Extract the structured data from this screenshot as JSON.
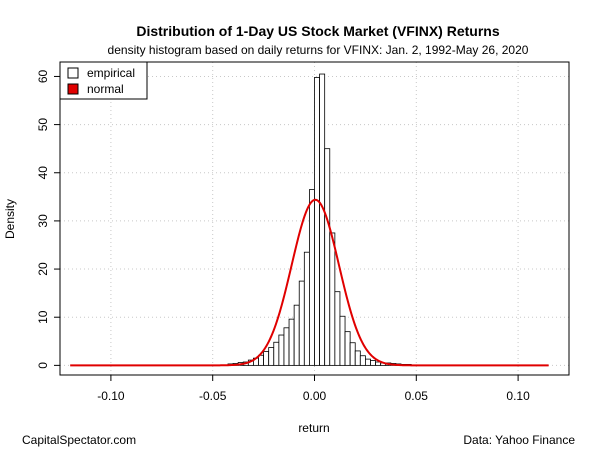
{
  "chart_data": {
    "type": "bar",
    "title": "Distribution of 1-Day US Stock Market (VFINX) Returns",
    "subtitle": "density histogram based on daily returns for VFINX: Jan. 2, 1992-May 26, 2020",
    "xlabel": "return",
    "ylabel": "Density",
    "xlim": [
      -0.125,
      0.125
    ],
    "ylim": [
      -2,
      63
    ],
    "xticks": [
      -0.1,
      -0.05,
      0.0,
      0.05,
      0.1
    ],
    "xtick_labels": [
      "-0.10",
      "-0.05",
      "0.00",
      "0.05",
      "0.10"
    ],
    "yticks": [
      0,
      10,
      20,
      30,
      40,
      50,
      60
    ],
    "ytick_labels": [
      "0",
      "10",
      "20",
      "30",
      "40",
      "50",
      "60"
    ],
    "grid": true,
    "legend_position": "top-left",
    "bin_width": 0.0025,
    "series": [
      {
        "name": "empirical",
        "style": "histogram",
        "color": "#000000",
        "fill": "#ffffff",
        "bin_start": [
          -0.0425,
          -0.04,
          -0.0375,
          -0.035,
          -0.0325,
          -0.03,
          -0.0275,
          -0.025,
          -0.0225,
          -0.02,
          -0.0175,
          -0.015,
          -0.0125,
          -0.01,
          -0.0075,
          -0.005,
          -0.0025,
          0.0,
          0.0025,
          0.005,
          0.0075,
          0.01,
          0.0125,
          0.015,
          0.0175,
          0.02,
          0.0225,
          0.025,
          0.0275,
          0.03,
          0.0325,
          0.035,
          0.0375,
          0.04,
          0.0425,
          0.045
        ],
        "values": [
          0.3,
          0.4,
          0.6,
          0.7,
          1.1,
          1.5,
          2.1,
          2.9,
          3.7,
          4.8,
          6.3,
          7.8,
          9.6,
          12.5,
          17.5,
          23.5,
          36.5,
          59.8,
          60.5,
          45.0,
          27.5,
          15.3,
          10.2,
          7.0,
          4.7,
          3.0,
          2.0,
          1.3,
          1.0,
          0.7,
          0.5,
          0.5,
          0.4,
          0.3,
          0.2,
          0.2
        ]
      },
      {
        "name": "normal",
        "style": "line",
        "color": "#e00000",
        "mean": 0.0004,
        "sd": 0.0116,
        "x_range": [
          -0.12,
          0.115
        ]
      }
    ]
  },
  "footer": {
    "left": "CapitalSpectator.com",
    "right": "Data: Yahoo Finance"
  }
}
